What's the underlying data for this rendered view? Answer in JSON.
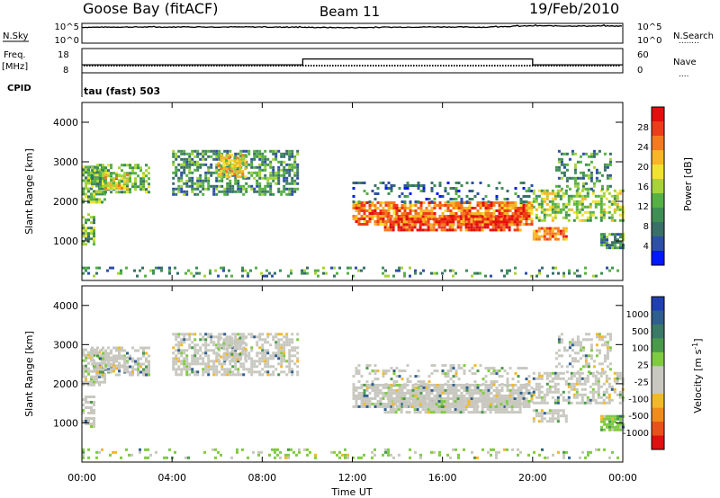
{
  "header": {
    "station": "Goose Bay (fitACF)",
    "beam": "Beam 11",
    "date": "19/Feb/2010"
  },
  "strip_nsky": {
    "left_label": "N.Sky",
    "left_ticks": [
      "10^5",
      "10^0"
    ],
    "right_label": "N.Search",
    "right_ticks": [
      "10^5",
      "10^0"
    ],
    "right_legend": "........"
  },
  "strip_freq": {
    "left_label_1": "Freq.",
    "left_label_2": "[MHz]",
    "left_ticks": [
      "18",
      "8"
    ],
    "right_label": "Nave",
    "right_ticks": [
      "60",
      "0"
    ],
    "right_legend": "....",
    "cpid_label": "CPID",
    "cpid_value": "tau (fast) 503"
  },
  "x_axis": {
    "label": "Time UT",
    "ticks": [
      "00:00",
      "04:00",
      "08:00",
      "12:00",
      "16:00",
      "20:00",
      "00:00"
    ]
  },
  "colors": {
    "power": [
      "#0019ff",
      "#2d4fa8",
      "#3a6f6a",
      "#3f8f55",
      "#56b144",
      "#a6d33a",
      "#f2e230",
      "#f8b525",
      "#f57a1f",
      "#ee3b19",
      "#e50d0d"
    ],
    "velocity": [
      "#1f3fb3",
      "#2f5e8f",
      "#3b7a67",
      "#4a9a4a",
      "#7fcb3f",
      "#c8c8c0",
      "#c8c8c0",
      "#f2b827",
      "#f08c1c",
      "#ea5118",
      "#e01010"
    ]
  },
  "chart_data": [
    {
      "type": "line",
      "title": "N.Sky",
      "x": [
        "00:00",
        "02:00",
        "04:00",
        "06:00",
        "08:00",
        "10:00",
        "12:00",
        "14:00",
        "16:00",
        "18:00",
        "20:00",
        "22:00",
        "24:00"
      ],
      "series": [
        {
          "name": "N.Sky",
          "values": [
            40000,
            50000,
            48000,
            52000,
            50000,
            38000,
            30000,
            45000,
            55000,
            42000,
            120000,
            110000,
            105000
          ]
        }
      ],
      "ylim": [
        "10^0",
        "10^5"
      ],
      "yscale": "log"
    },
    {
      "type": "line",
      "title": "Freq. [MHz]",
      "x": [
        "00:00",
        "04:00",
        "08:00",
        "09:48",
        "09:48",
        "16:00",
        "20:00",
        "20:00",
        "24:00"
      ],
      "series": [
        {
          "name": "Freq.",
          "values": [
            10,
            10,
            10,
            10,
            10,
            10,
            10,
            10,
            10
          ]
        },
        {
          "name": "Nave",
          "values": [
            18,
            18,
            18,
            18,
            35,
            35,
            35,
            18,
            18
          ]
        }
      ],
      "ylim": [
        8,
        18
      ],
      "y2lim": [
        0,
        60
      ]
    },
    {
      "type": "heatmap",
      "ylabel": "Slant Range [km]",
      "xlabel": "Time UT",
      "yticks": [
        1000,
        2000,
        3000,
        4000
      ],
      "xticks": [
        "00:00",
        "04:00",
        "08:00",
        "12:00",
        "16:00",
        "20:00",
        "00:00"
      ],
      "colorbar": {
        "label": "Power [dB]",
        "ticks": [
          4,
          8,
          12,
          16,
          20,
          24,
          28
        ]
      }
    },
    {
      "type": "heatmap",
      "ylabel": "Slant Range [km]",
      "xlabel": "Time UT",
      "yticks": [
        1000,
        2000,
        3000,
        4000
      ],
      "xticks": [
        "00:00",
        "04:00",
        "08:00",
        "12:00",
        "16:00",
        "20:00",
        "00:00"
      ],
      "colorbar": {
        "label": "Velocity [m s^-1]",
        "ticks": [
          1000,
          500,
          100,
          25,
          -25,
          -100,
          -500,
          -1000
        ]
      }
    }
  ]
}
